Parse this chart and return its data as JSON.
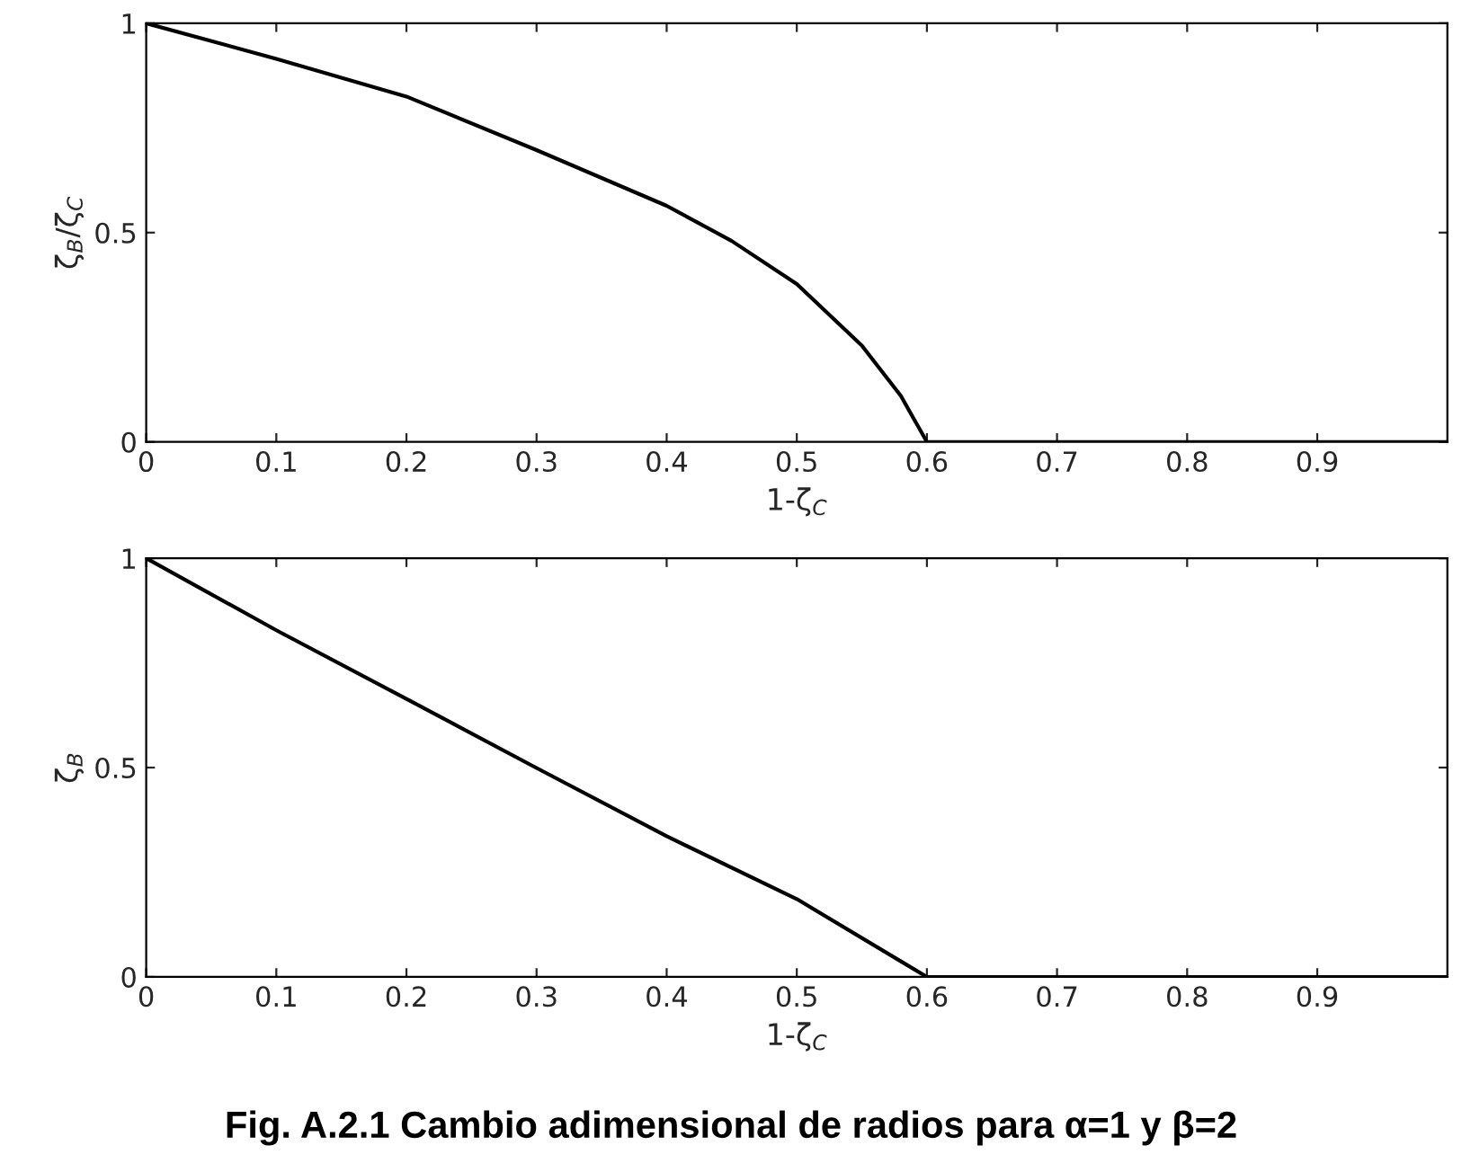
{
  "chart_data": [
    {
      "type": "line",
      "ylabel": "ζ$_{B}$/ζ$_{C}$",
      "xlabel": "1-ζ$_{C}$",
      "xlim": [
        0,
        1
      ],
      "ylim": [
        0,
        1
      ],
      "xticks": [
        0,
        0.1,
        0.2,
        0.3,
        0.4,
        0.5,
        0.6,
        0.7,
        0.8,
        0.9
      ],
      "yticks": [
        0,
        0.5,
        1
      ],
      "grid": false,
      "series": [
        {
          "color": "#000000",
          "x": [
            0,
            0.1,
            0.2,
            0.3,
            0.4,
            0.45,
            0.5,
            0.55,
            0.58,
            0.6,
            0.61,
            0.7,
            0.8,
            0.9,
            1
          ],
          "values": [
            1,
            0.915,
            0.825,
            0.697,
            0.564,
            0.48,
            0.377,
            0.23,
            0.11,
            0,
            0,
            0,
            0,
            0,
            0
          ]
        }
      ]
    },
    {
      "type": "line",
      "ylabel": "ζ$_{B}$",
      "xlabel": "1-ζ$_{C}$",
      "xlim": [
        0,
        1
      ],
      "ylim": [
        0,
        1
      ],
      "xticks": [
        0,
        0.1,
        0.2,
        0.3,
        0.4,
        0.5,
        0.6,
        0.7,
        0.8,
        0.9
      ],
      "yticks": [
        0,
        0.5,
        1
      ],
      "grid": false,
      "annotations": [
        "Fig. A.2.1 Cambio adimensional de radios para α=1 y β=2"
      ],
      "series": [
        {
          "color": "#000000",
          "x": [
            0,
            0.1,
            0.2,
            0.3,
            0.4,
            0.5,
            0.6,
            0.61,
            0.7,
            0.8,
            0.9,
            1
          ],
          "values": [
            1,
            0.828,
            0.664,
            0.499,
            0.336,
            0.186,
            0,
            0,
            0,
            0,
            0,
            0
          ]
        }
      ]
    }
  ]
}
